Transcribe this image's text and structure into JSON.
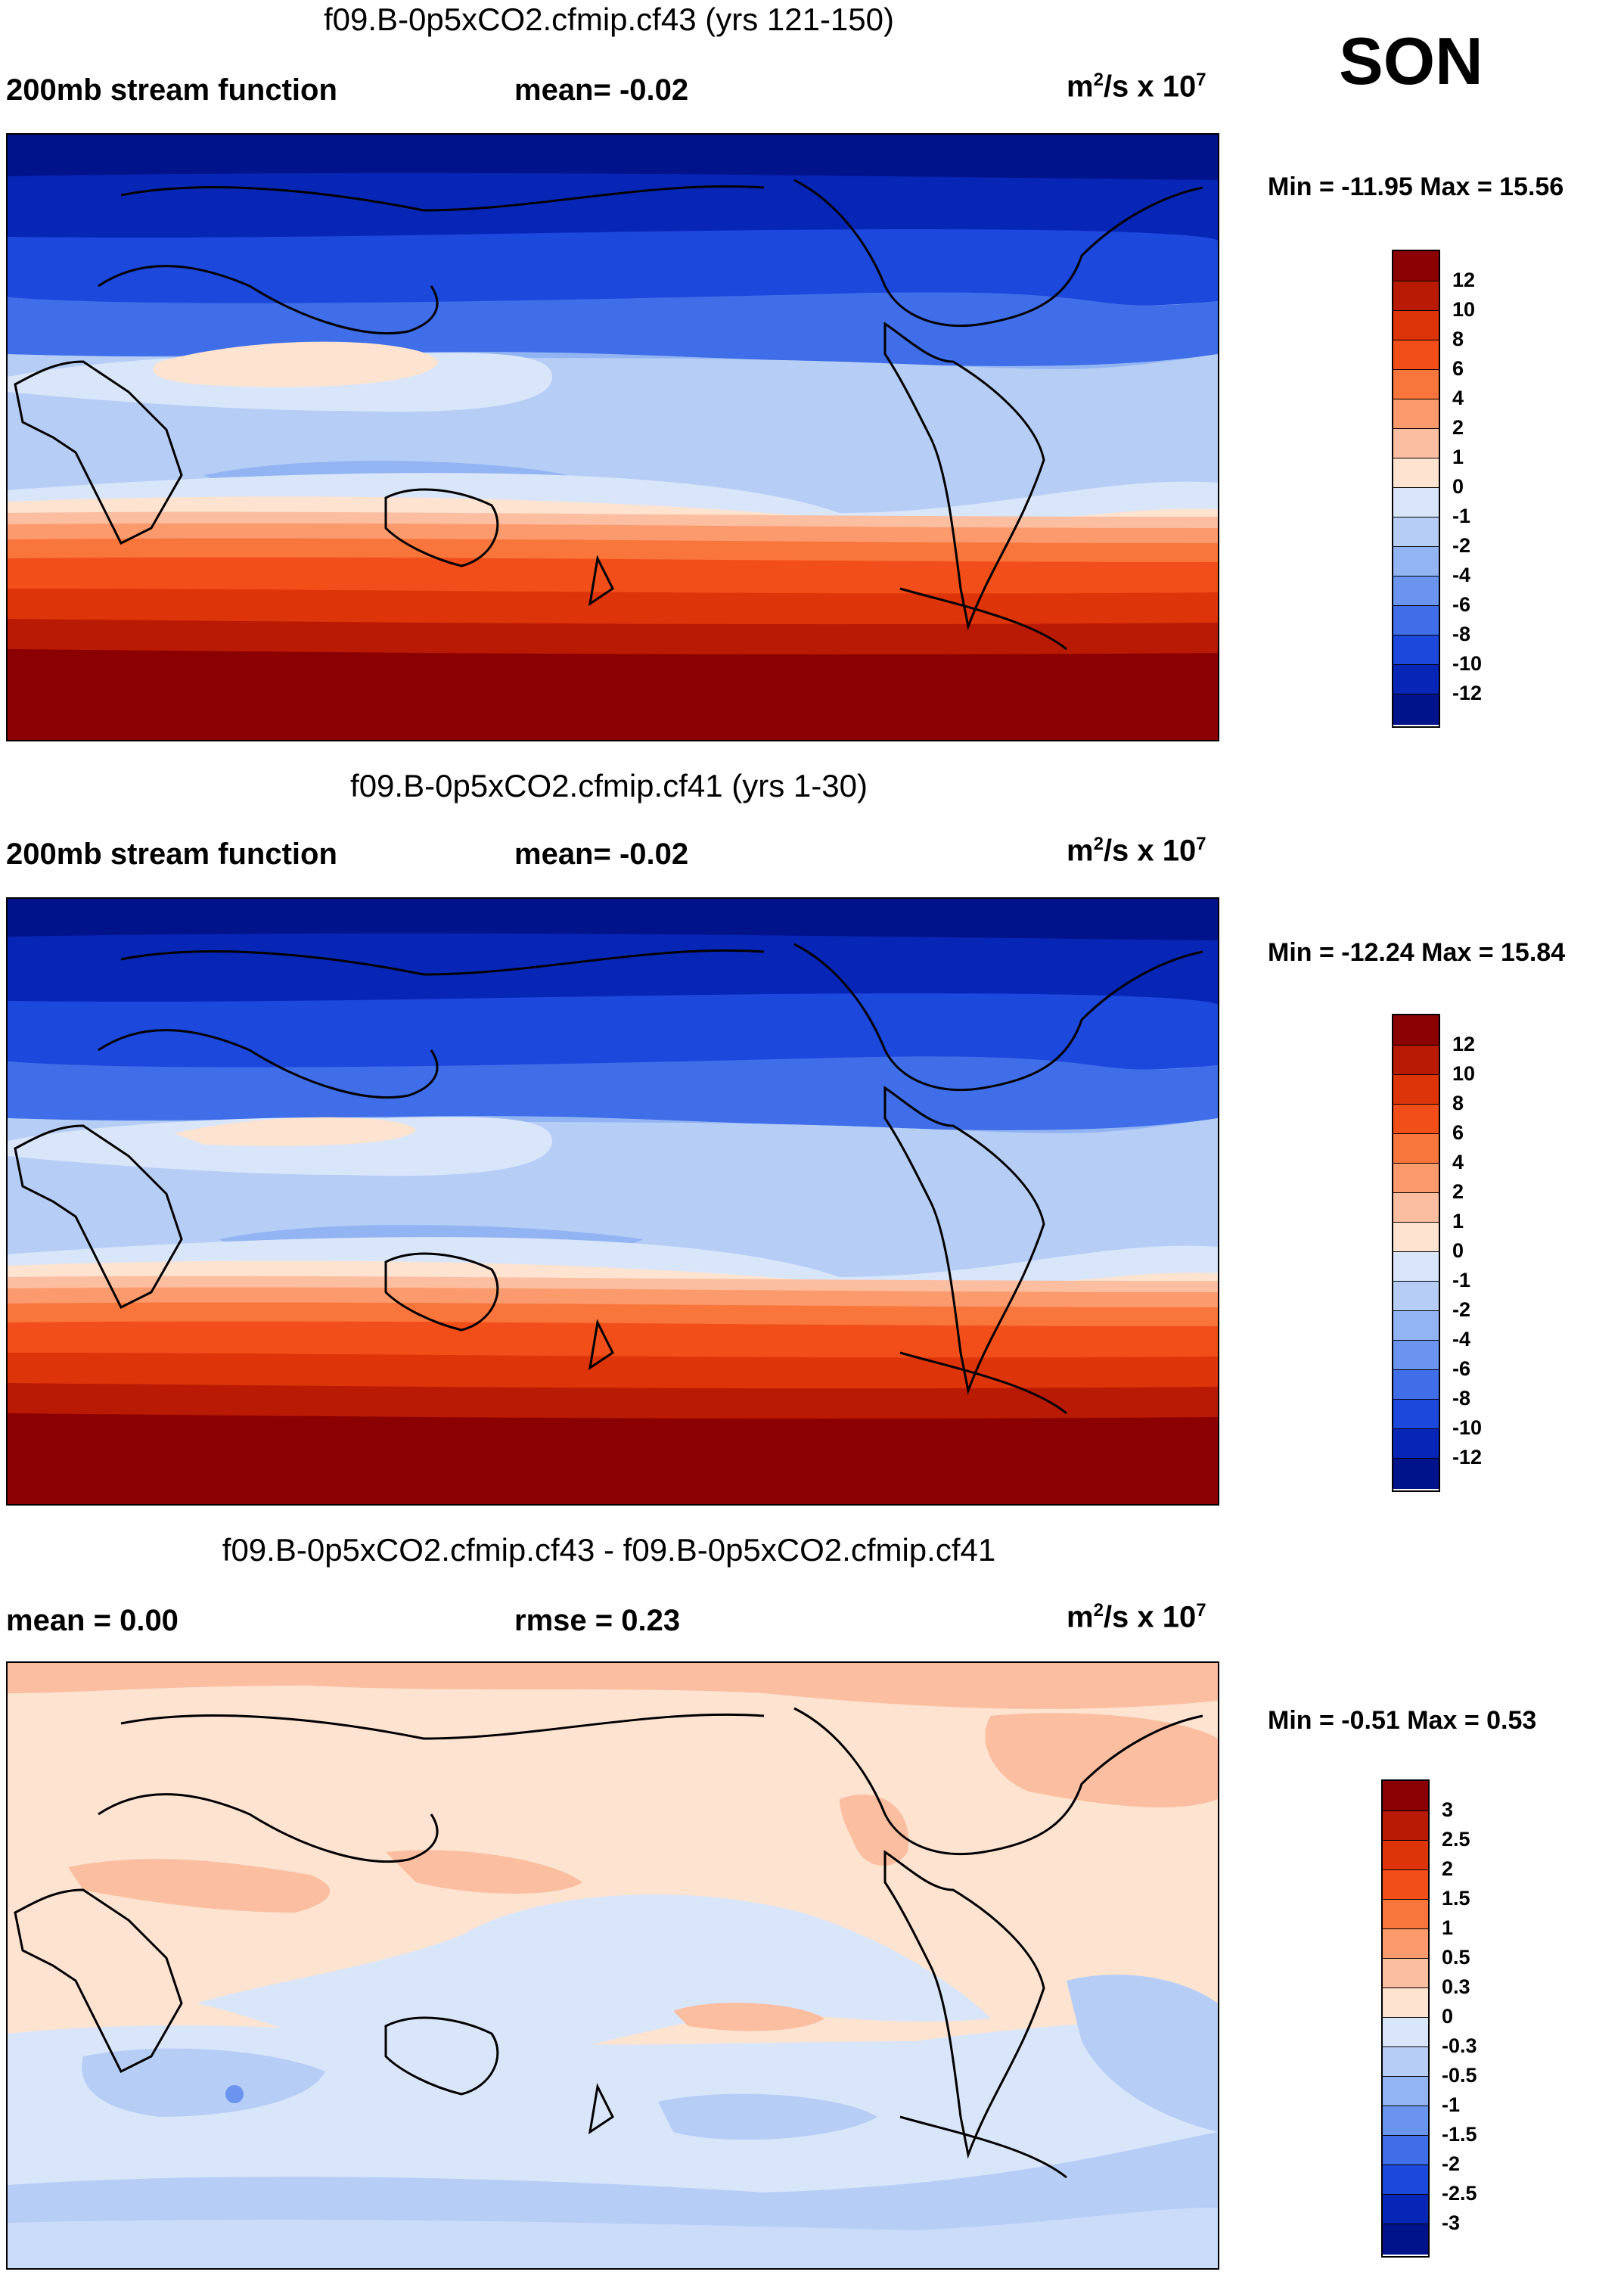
{
  "season": "SON",
  "panels": [
    {
      "title": "f09.B-0p5xCO2.cfmip.cf43 (yrs 121-150)",
      "left_label": "200mb stream function",
      "mid_label": "mean=  -0.02",
      "units_base": "m",
      "units_exp": "2",
      "units_mid": "/s x 10",
      "units_exp2": "7",
      "minmax": "Min = -11.95 Max =  15.56",
      "levels": [
        "12",
        "10",
        "8",
        "6",
        "4",
        "2",
        "1",
        "0",
        "-1",
        "-2",
        "-4",
        "-6",
        "-8",
        "-10",
        "-12"
      ],
      "colors": [
        "#8b0000",
        "#b81a04",
        "#dd3409",
        "#f24e1a",
        "#f8753c",
        "#fb9a6c",
        "#fcbea0",
        "#fde3d0",
        "#d9e6fa",
        "#b6cef6",
        "#93b4f2",
        "#6a94ee",
        "#3f6ee8",
        "#1c48dc",
        "#0726b6",
        "#00138a"
      ]
    },
    {
      "title": "f09.B-0p5xCO2.cfmip.cf41 (yrs 1-30)",
      "left_label": "200mb stream function",
      "mid_label": "mean=  -0.02",
      "units_base": "m",
      "units_exp": "2",
      "units_mid": "/s x 10",
      "units_exp2": "7",
      "minmax": "Min = -12.24 Max =  15.84",
      "levels": [
        "12",
        "10",
        "8",
        "6",
        "4",
        "2",
        "1",
        "0",
        "-1",
        "-2",
        "-4",
        "-6",
        "-8",
        "-10",
        "-12"
      ],
      "colors": [
        "#8b0000",
        "#b81a04",
        "#dd3409",
        "#f24e1a",
        "#f8753c",
        "#fb9a6c",
        "#fcbea0",
        "#fde3d0",
        "#d9e6fa",
        "#b6cef6",
        "#93b4f2",
        "#6a94ee",
        "#3f6ee8",
        "#1c48dc",
        "#0726b6",
        "#00138a"
      ]
    },
    {
      "title": "f09.B-0p5xCO2.cfmip.cf43 - f09.B-0p5xCO2.cfmip.cf41",
      "left_label": "mean =   0.00",
      "mid_label": "rmse =   0.23",
      "units_base": "m",
      "units_exp": "2",
      "units_mid": "/s x 10",
      "units_exp2": "7",
      "minmax": "Min =  -0.51 Max =   0.53",
      "levels": [
        "3",
        "2.5",
        "2",
        "1.5",
        "1",
        "0.5",
        "0.3",
        "0",
        "-0.3",
        "-0.5",
        "-1",
        "-1.5",
        "-2",
        "-2.5",
        "-3"
      ],
      "colors": [
        "#8b0000",
        "#b81a04",
        "#dd3409",
        "#f24e1a",
        "#f8753c",
        "#fb9a6c",
        "#fcbea0",
        "#fde3d0",
        "#d9e6fa",
        "#b6cef6",
        "#93b4f2",
        "#6a94ee",
        "#3f6ee8",
        "#1c48dc",
        "#0726b6",
        "#00138a"
      ]
    }
  ]
}
